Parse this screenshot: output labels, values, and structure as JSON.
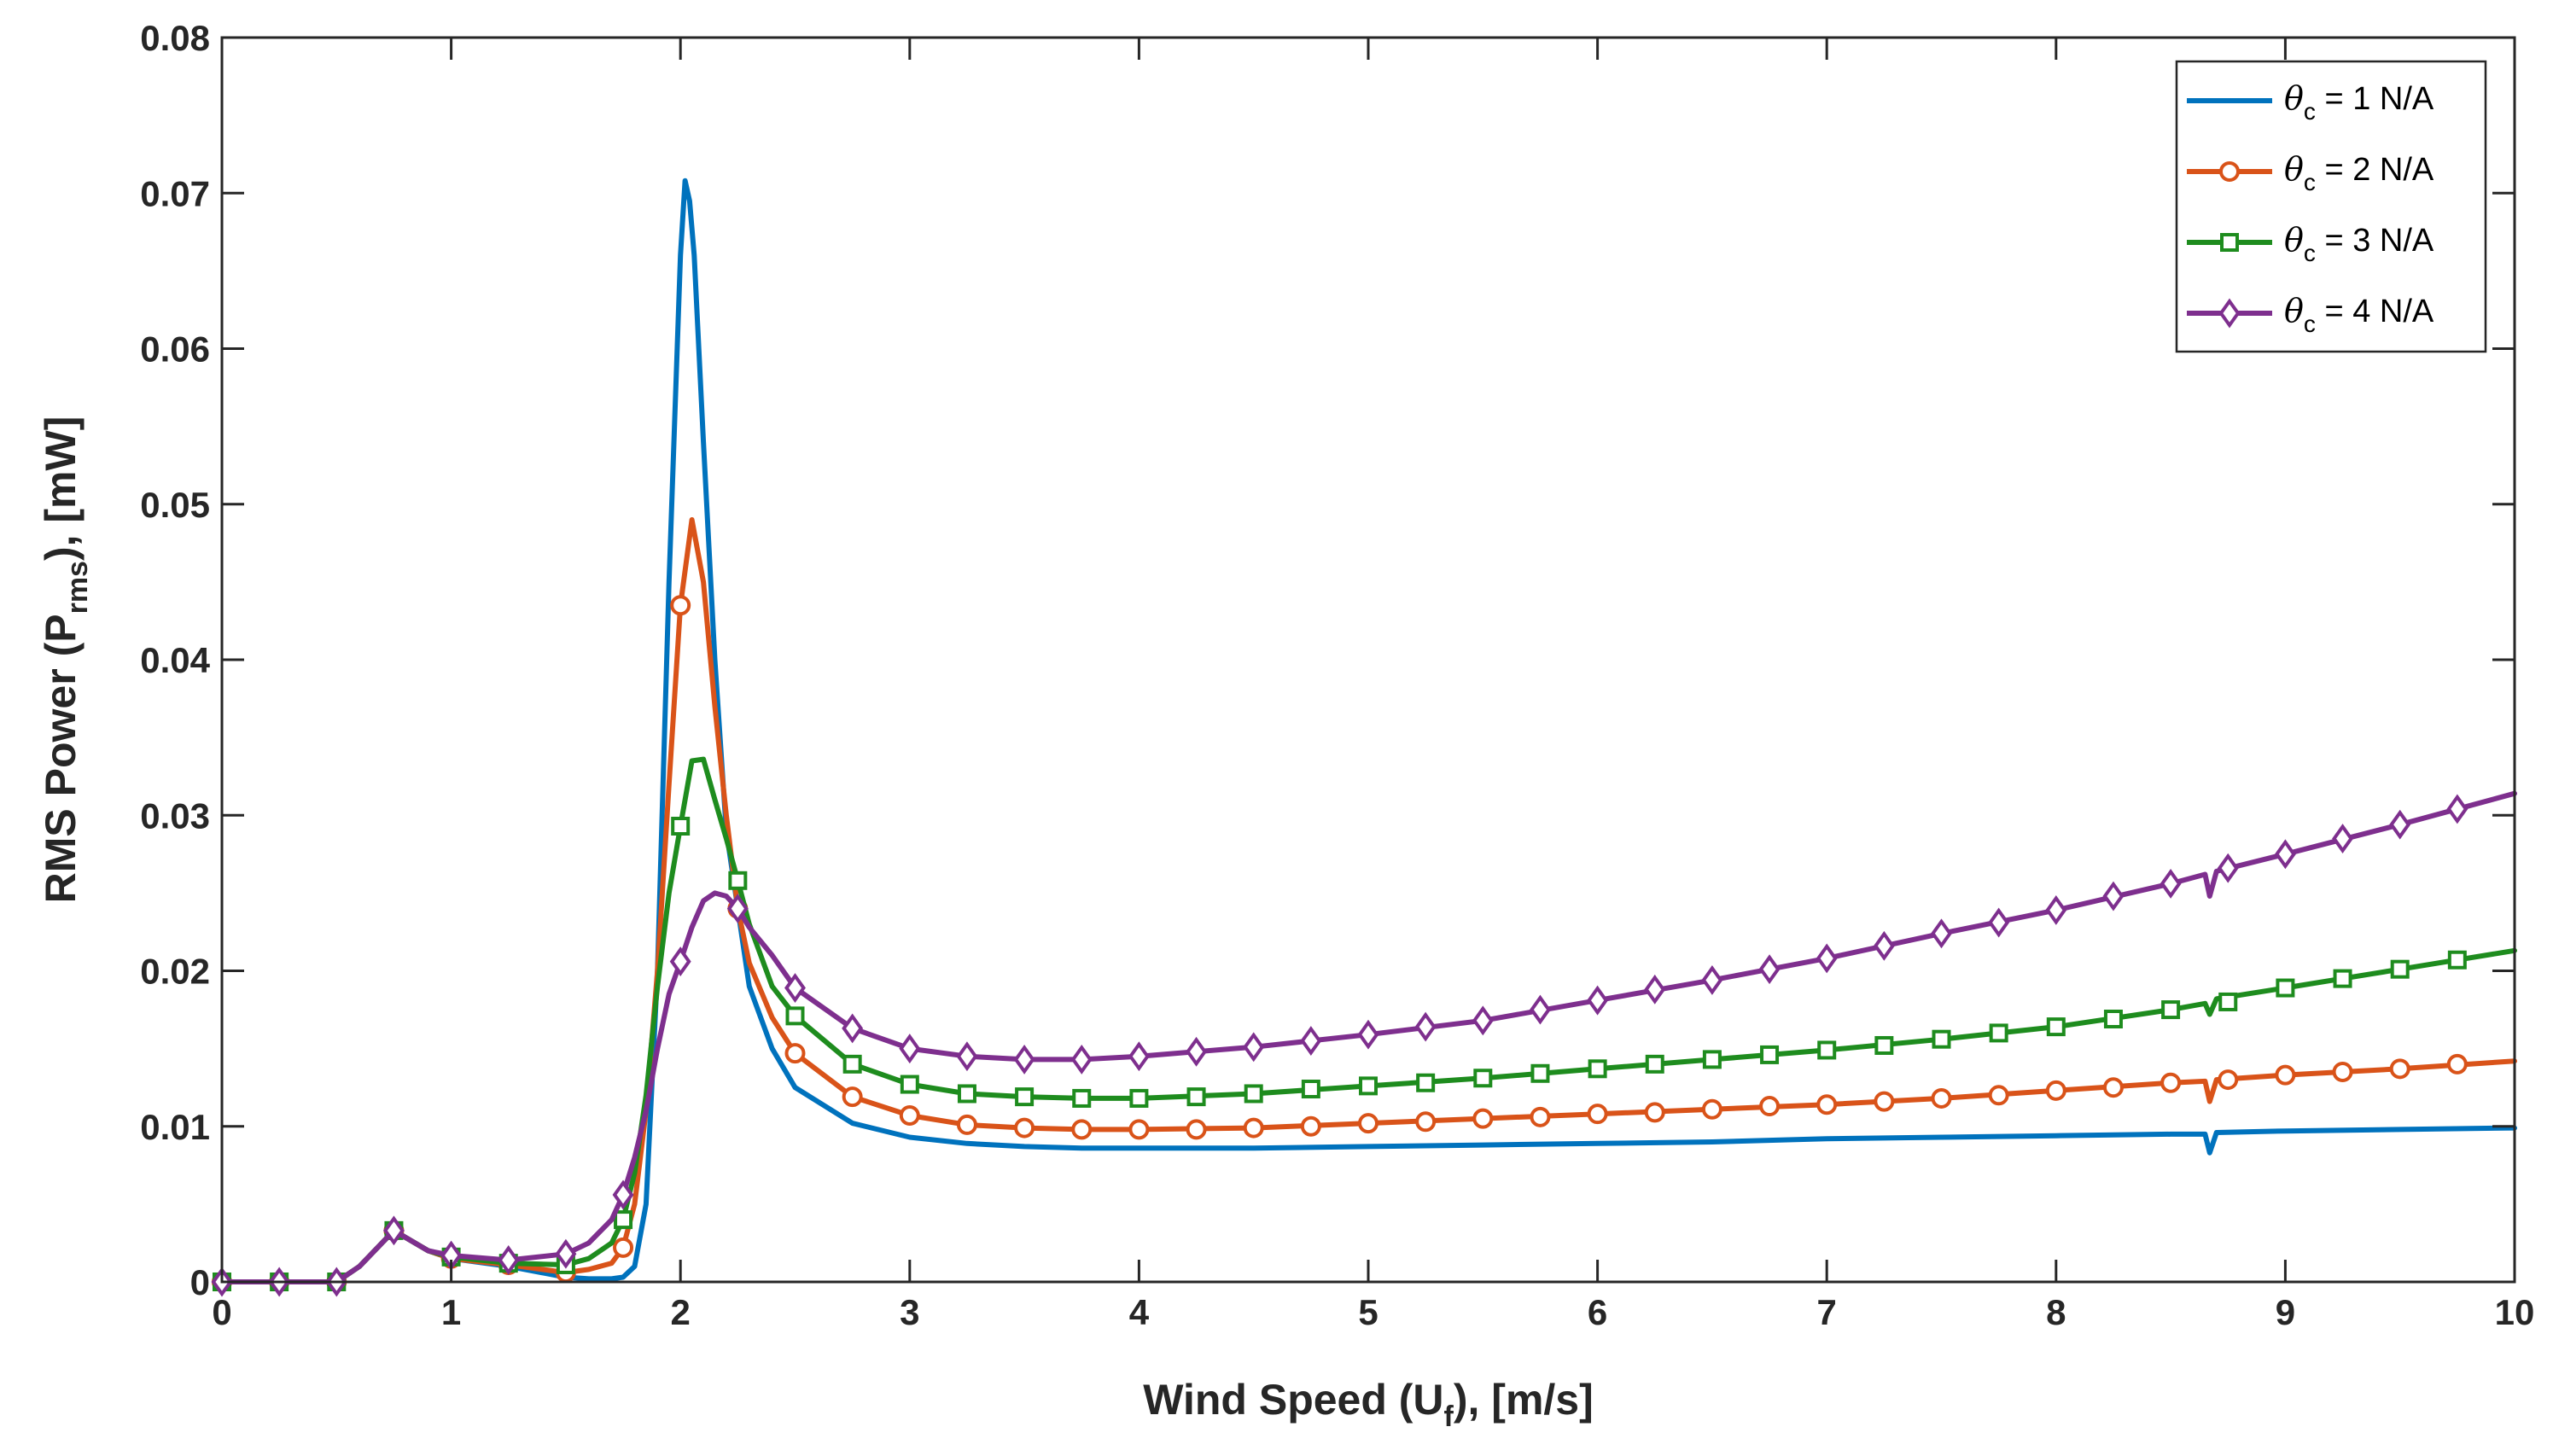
{
  "chart_data": {
    "type": "line",
    "title": "",
    "xlabel": {
      "main": "Wind Speed (U",
      "sub": "f",
      "tail": "), [m/s]"
    },
    "ylabel": {
      "main": "RMS Power (P",
      "sub": "rms",
      "tail": "), [mW]"
    },
    "xlim": [
      0,
      10
    ],
    "ylim": [
      0,
      0.08
    ],
    "xticks": [
      "0",
      "1",
      "2",
      "3",
      "4",
      "5",
      "6",
      "7",
      "8",
      "9",
      "10"
    ],
    "yticks": [
      "0",
      "0.01",
      "0.02",
      "0.03",
      "0.04",
      "0.05",
      "0.06",
      "0.07",
      "0.08"
    ],
    "grid": false,
    "legend_position": "top-right",
    "series": [
      {
        "name": "θc = 1 N/A",
        "legend": {
          "sym": "θ",
          "sub": "c",
          "text": " = 1 N/A"
        },
        "color": "#0072BD",
        "marker": "none",
        "x": [
          0,
          0.5,
          0.6,
          0.75,
          0.9,
          1.0,
          1.25,
          1.5,
          1.6,
          1.7,
          1.75,
          1.8,
          1.85,
          1.9,
          1.95,
          2.0,
          2.02,
          2.04,
          2.06,
          2.1,
          2.15,
          2.2,
          2.3,
          2.4,
          2.5,
          2.75,
          3.0,
          3.25,
          3.5,
          3.75,
          4.0,
          4.5,
          5.0,
          5.5,
          6.0,
          6.5,
          7.0,
          7.5,
          8.0,
          8.5,
          8.65,
          8.67,
          8.7,
          9.0,
          9.5,
          10.0
        ],
        "y": [
          0,
          0,
          0.001,
          0.0033,
          0.002,
          0.0015,
          0.001,
          0.0003,
          0.0002,
          0.0002,
          0.0003,
          0.001,
          0.005,
          0.02,
          0.045,
          0.066,
          0.0708,
          0.0695,
          0.066,
          0.054,
          0.04,
          0.029,
          0.019,
          0.015,
          0.0125,
          0.0102,
          0.0093,
          0.0089,
          0.0087,
          0.0086,
          0.0086,
          0.0086,
          0.0087,
          0.0088,
          0.0089,
          0.009,
          0.0092,
          0.0093,
          0.0094,
          0.0095,
          0.0095,
          0.0083,
          0.0096,
          0.0097,
          0.0098,
          0.0099
        ]
      },
      {
        "name": "θc = 2 N/A",
        "legend": {
          "sym": "θ",
          "sub": "c",
          "text": " = 2 N/A"
        },
        "color": "#D95319",
        "marker": "circle",
        "x": [
          0,
          0.5,
          0.6,
          0.75,
          0.9,
          1.0,
          1.25,
          1.5,
          1.6,
          1.7,
          1.75,
          1.8,
          1.85,
          1.9,
          1.95,
          2.0,
          2.05,
          2.1,
          2.15,
          2.2,
          2.25,
          2.3,
          2.4,
          2.5,
          2.75,
          3.0,
          3.25,
          3.5,
          3.75,
          4.0,
          4.5,
          5.0,
          5.5,
          6.0,
          6.5,
          7.0,
          7.5,
          8.0,
          8.5,
          8.65,
          8.67,
          8.7,
          9.0,
          9.5,
          10.0
        ],
        "y": [
          0,
          0,
          0.001,
          0.0033,
          0.002,
          0.0015,
          0.0011,
          0.0006,
          0.0008,
          0.0012,
          0.0022,
          0.005,
          0.011,
          0.02,
          0.032,
          0.0435,
          0.049,
          0.045,
          0.037,
          0.03,
          0.024,
          0.0205,
          0.017,
          0.0147,
          0.0119,
          0.0107,
          0.0101,
          0.0099,
          0.0098,
          0.0098,
          0.0099,
          0.0102,
          0.0105,
          0.0108,
          0.0111,
          0.0114,
          0.0118,
          0.0123,
          0.0128,
          0.0129,
          0.0116,
          0.013,
          0.0133,
          0.0137,
          0.0142
        ],
        "marker_x": [
          0,
          0.25,
          0.5,
          0.75,
          1.0,
          1.25,
          1.5,
          1.75,
          2.0,
          2.25,
          2.5,
          2.75,
          3.0,
          3.25,
          3.5,
          3.75,
          4.0,
          4.25,
          4.5,
          4.75,
          5.0,
          5.25,
          5.5,
          5.75,
          6.0,
          6.25,
          6.5,
          6.75,
          7.0,
          7.25,
          7.5,
          7.75,
          8.0,
          8.25,
          8.5,
          8.75,
          9.0,
          9.25,
          9.5,
          9.75
        ],
        "marker_y": [
          0,
          0,
          0,
          0.0033,
          0.0015,
          0.0011,
          0.0006,
          0.0022,
          0.0435,
          0.024,
          0.0147,
          0.0119,
          0.0107,
          0.0101,
          0.0099,
          0.0098,
          0.0098,
          0.0098,
          0.0099,
          0.01,
          0.0102,
          0.0103,
          0.0105,
          0.0106,
          0.0108,
          0.0109,
          0.0111,
          0.0113,
          0.0114,
          0.0116,
          0.0118,
          0.012,
          0.0123,
          0.0125,
          0.0128,
          0.013,
          0.0133,
          0.0135,
          0.0137,
          0.014
        ]
      },
      {
        "name": "θc = 3 N/A",
        "legend": {
          "sym": "θ",
          "sub": "c",
          "text": " = 3 N/A"
        },
        "color": "#1E8C1E",
        "marker": "square",
        "x": [
          0,
          0.5,
          0.6,
          0.75,
          0.9,
          1.0,
          1.25,
          1.5,
          1.6,
          1.7,
          1.75,
          1.8,
          1.85,
          1.9,
          1.95,
          2.0,
          2.05,
          2.1,
          2.15,
          2.2,
          2.25,
          2.3,
          2.4,
          2.5,
          2.75,
          3.0,
          3.25,
          3.5,
          3.75,
          4.0,
          4.5,
          5.0,
          5.5,
          6.0,
          6.5,
          7.0,
          7.5,
          8.0,
          8.5,
          8.65,
          8.67,
          8.7,
          9.0,
          9.5,
          10.0
        ],
        "y": [
          0,
          0,
          0.001,
          0.0033,
          0.002,
          0.0016,
          0.0012,
          0.0011,
          0.0015,
          0.0025,
          0.004,
          0.007,
          0.012,
          0.019,
          0.025,
          0.0293,
          0.0335,
          0.0336,
          0.031,
          0.0285,
          0.0258,
          0.023,
          0.019,
          0.0171,
          0.014,
          0.0127,
          0.0121,
          0.0119,
          0.0118,
          0.0118,
          0.0121,
          0.0126,
          0.0131,
          0.0137,
          0.0143,
          0.0149,
          0.0156,
          0.0164,
          0.0175,
          0.0179,
          0.0172,
          0.0182,
          0.0189,
          0.0201,
          0.0213
        ],
        "marker_x": [
          0,
          0.25,
          0.5,
          0.75,
          1.0,
          1.25,
          1.5,
          1.75,
          2.0,
          2.25,
          2.5,
          2.75,
          3.0,
          3.25,
          3.5,
          3.75,
          4.0,
          4.25,
          4.5,
          4.75,
          5.0,
          5.25,
          5.5,
          5.75,
          6.0,
          6.25,
          6.5,
          6.75,
          7.0,
          7.25,
          7.5,
          7.75,
          8.0,
          8.25,
          8.5,
          8.75,
          9.0,
          9.25,
          9.5,
          9.75
        ],
        "marker_y": [
          0,
          0,
          0,
          0.0033,
          0.0016,
          0.0012,
          0.0011,
          0.004,
          0.0293,
          0.0258,
          0.0171,
          0.014,
          0.0127,
          0.0121,
          0.0119,
          0.0118,
          0.0118,
          0.0119,
          0.0121,
          0.0124,
          0.0126,
          0.0128,
          0.0131,
          0.0134,
          0.0137,
          0.014,
          0.0143,
          0.0146,
          0.0149,
          0.0152,
          0.0156,
          0.016,
          0.0164,
          0.0169,
          0.0175,
          0.018,
          0.0189,
          0.0195,
          0.0201,
          0.0207
        ]
      },
      {
        "name": "θc = 4 N/A",
        "legend": {
          "sym": "θ",
          "sub": "c",
          "text": " = 4 N/A"
        },
        "color": "#7E2F8E",
        "marker": "diamond",
        "x": [
          0,
          0.5,
          0.6,
          0.75,
          0.9,
          1.0,
          1.25,
          1.5,
          1.6,
          1.7,
          1.75,
          1.8,
          1.85,
          1.9,
          1.95,
          2.0,
          2.05,
          2.1,
          2.15,
          2.2,
          2.25,
          2.3,
          2.4,
          2.5,
          2.75,
          3.0,
          3.25,
          3.5,
          3.75,
          4.0,
          4.5,
          5.0,
          5.5,
          6.0,
          6.5,
          7.0,
          7.5,
          8.0,
          8.5,
          8.65,
          8.67,
          8.7,
          9.0,
          9.5,
          10.0
        ],
        "y": [
          0,
          0,
          0.001,
          0.0033,
          0.002,
          0.0017,
          0.0014,
          0.0018,
          0.0025,
          0.004,
          0.0056,
          0.008,
          0.011,
          0.015,
          0.0185,
          0.0206,
          0.0228,
          0.0245,
          0.025,
          0.0248,
          0.024,
          0.0228,
          0.021,
          0.0189,
          0.0163,
          0.015,
          0.0145,
          0.0143,
          0.0143,
          0.0145,
          0.0151,
          0.0159,
          0.0168,
          0.0181,
          0.0194,
          0.0208,
          0.0224,
          0.0239,
          0.0256,
          0.0262,
          0.0248,
          0.0264,
          0.0275,
          0.0294,
          0.0314
        ],
        "marker_x": [
          0,
          0.25,
          0.5,
          0.75,
          1.0,
          1.25,
          1.5,
          1.75,
          2.0,
          2.25,
          2.5,
          2.75,
          3.0,
          3.25,
          3.5,
          3.75,
          4.0,
          4.25,
          4.5,
          4.75,
          5.0,
          5.25,
          5.5,
          5.75,
          6.0,
          6.25,
          6.5,
          6.75,
          7.0,
          7.25,
          7.5,
          7.75,
          8.0,
          8.25,
          8.5,
          8.75,
          9.0,
          9.25,
          9.5,
          9.75
        ],
        "marker_y": [
          0,
          0,
          0,
          0.0033,
          0.0017,
          0.0014,
          0.0018,
          0.0056,
          0.0206,
          0.024,
          0.0189,
          0.0163,
          0.015,
          0.0145,
          0.0143,
          0.0143,
          0.0145,
          0.0148,
          0.0151,
          0.0155,
          0.0159,
          0.0164,
          0.0168,
          0.0175,
          0.0181,
          0.0188,
          0.0194,
          0.0201,
          0.0208,
          0.0216,
          0.0224,
          0.0231,
          0.0239,
          0.0248,
          0.0256,
          0.0266,
          0.0275,
          0.0285,
          0.0294,
          0.0304
        ]
      }
    ]
  }
}
